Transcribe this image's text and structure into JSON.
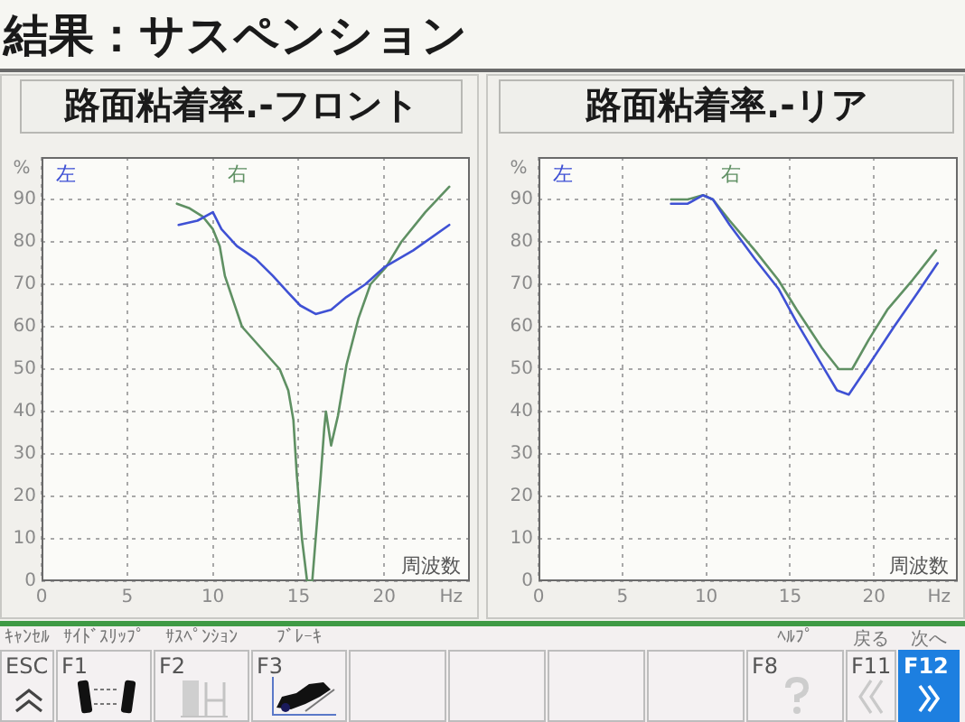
{
  "chart_data": [
    {
      "type": "other",
      "title": "結果：サスペンション"
    },
    {
      "type": "line",
      "title": "路面粘着率.-フロント",
      "xlabel": "周波数",
      "ylabel": "%",
      "annotations": [
        "Hz"
      ],
      "xlim": [
        0,
        25
      ],
      "xticks": [
        0,
        5,
        10,
        15,
        20
      ],
      "ylim": [
        0,
        100
      ],
      "yticks": [
        0,
        10,
        20,
        30,
        40,
        50,
        60,
        70,
        80,
        90
      ],
      "grid": true,
      "legend": "top",
      "series": [
        {
          "name": "左",
          "color": "#3f51d4",
          "x": [
            8.0,
            9.1,
            10.0,
            10.5,
            11.4,
            12.5,
            13.5,
            14.4,
            15.1,
            16.0,
            16.9,
            17.8,
            18.9,
            20.0,
            21.7,
            23.8
          ],
          "values": [
            84,
            85,
            87,
            83,
            79,
            76,
            72,
            68,
            65,
            63,
            64,
            67,
            70,
            74,
            78,
            84
          ]
        },
        {
          "name": "右",
          "color": "#5f9063",
          "x": [
            7.9,
            8.6,
            9.4,
            10.0,
            10.4,
            10.7,
            11.2,
            11.7,
            12.8,
            13.9,
            14.4,
            14.7,
            14.9,
            15.2,
            15.5,
            15.8,
            16.0,
            16.3,
            16.5,
            16.6,
            16.9,
            17.3,
            17.8,
            18.5,
            19.2,
            20.1,
            21.0,
            22.4,
            23.8
          ],
          "values": [
            89,
            88,
            86,
            83,
            79,
            72,
            66,
            60,
            55,
            50,
            45,
            38,
            25,
            10,
            0,
            0,
            10,
            25,
            36,
            40,
            32,
            39,
            51,
            62,
            70,
            74,
            80,
            87,
            93
          ]
        }
      ]
    },
    {
      "type": "line",
      "title": "路面粘着率.-リア",
      "xlabel": "周波数",
      "ylabel": "%",
      "annotations": [
        "Hz"
      ],
      "xlim": [
        0,
        25
      ],
      "xticks": [
        0,
        5,
        10,
        15,
        20
      ],
      "ylim": [
        0,
        100
      ],
      "yticks": [
        0,
        10,
        20,
        30,
        40,
        50,
        60,
        70,
        80,
        90
      ],
      "grid": true,
      "legend": "top",
      "series": [
        {
          "name": "左",
          "color": "#3f51d4",
          "x": [
            7.9,
            8.9,
            9.8,
            10.4,
            11.4,
            12.9,
            14.3,
            15.4,
            16.9,
            17.8,
            18.5,
            19.7,
            21.2,
            22.6,
            23.8
          ],
          "values": [
            89,
            89,
            91,
            90,
            84,
            76,
            69,
            61,
            51,
            45,
            44,
            51,
            60,
            68,
            75
          ]
        },
        {
          "name": "右",
          "color": "#5f9063",
          "x": [
            7.9,
            8.9,
            9.8,
            10.4,
            11.4,
            12.9,
            14.3,
            15.4,
            16.9,
            17.9,
            18.7,
            19.7,
            20.8,
            22.3,
            23.7
          ],
          "values": [
            90,
            90,
            91,
            90,
            85,
            78,
            71,
            64,
            55,
            50,
            50,
            57,
            64,
            71,
            78
          ]
        }
      ]
    },
    {
      "type": "other",
      "annotations": [
        "ｷｬﾝｾﾙ",
        "ESC",
        "ｻｲﾄﾞｽﾘｯﾌﾟ",
        "F1",
        "ｻｽﾍﾟﾝｼｮﾝ",
        "F2",
        "ﾌﾞﾚｰｷ",
        "F3",
        "ﾍﾙﾌﾟ",
        "F8",
        "戻る",
        "F11",
        "次へ",
        "F12"
      ]
    }
  ]
}
